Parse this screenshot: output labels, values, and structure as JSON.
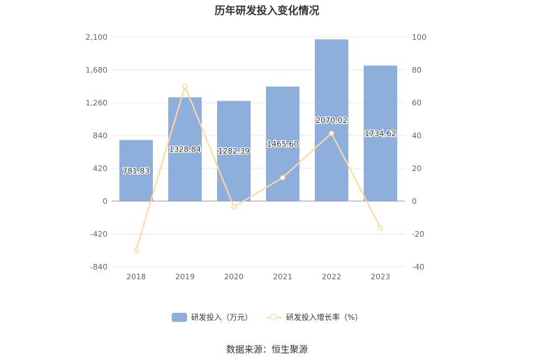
{
  "chart_data": {
    "type": "bar",
    "title": "历年研发投入变化情况",
    "categories": [
      "2018",
      "2019",
      "2020",
      "2021",
      "2022",
      "2023"
    ],
    "series": [
      {
        "name": "研发投入（万元）",
        "type": "bar",
        "axis": "left",
        "values": [
          781.83,
          1328.84,
          1282.39,
          1465.6,
          2070.02,
          1734.62
        ],
        "labels": [
          "781.83",
          "1328.84",
          "1282.39",
          "1465.60",
          "2070.02",
          "1734.62"
        ]
      },
      {
        "name": "研发投入增长率（%）",
        "type": "line",
        "axis": "right",
        "values": [
          -30.0,
          70.0,
          -3.5,
          14.3,
          41.3,
          -16.2
        ]
      }
    ],
    "y_left": {
      "min": -840,
      "max": 2100,
      "ticks": [
        -840,
        -420,
        0,
        420,
        840,
        1260,
        1680,
        2100
      ],
      "tick_labels": [
        "-840",
        "-420",
        "0",
        "420",
        "840",
        "1,260",
        "1,680",
        "2,100"
      ]
    },
    "y_right": {
      "min": -40,
      "max": 100,
      "ticks": [
        -40,
        -20,
        0,
        20,
        40,
        60,
        80,
        100
      ],
      "tick_labels": [
        "-40",
        "-20",
        "0",
        "20",
        "40",
        "60",
        "80",
        "100"
      ]
    },
    "grid": true,
    "legend_position": "bottom",
    "colors": {
      "bar": "#8eaedb",
      "line": "#fdd9a0",
      "grid": "#e6e6e6",
      "axis_text": "#666666"
    }
  },
  "source_text": "数据来源：恒生聚源"
}
